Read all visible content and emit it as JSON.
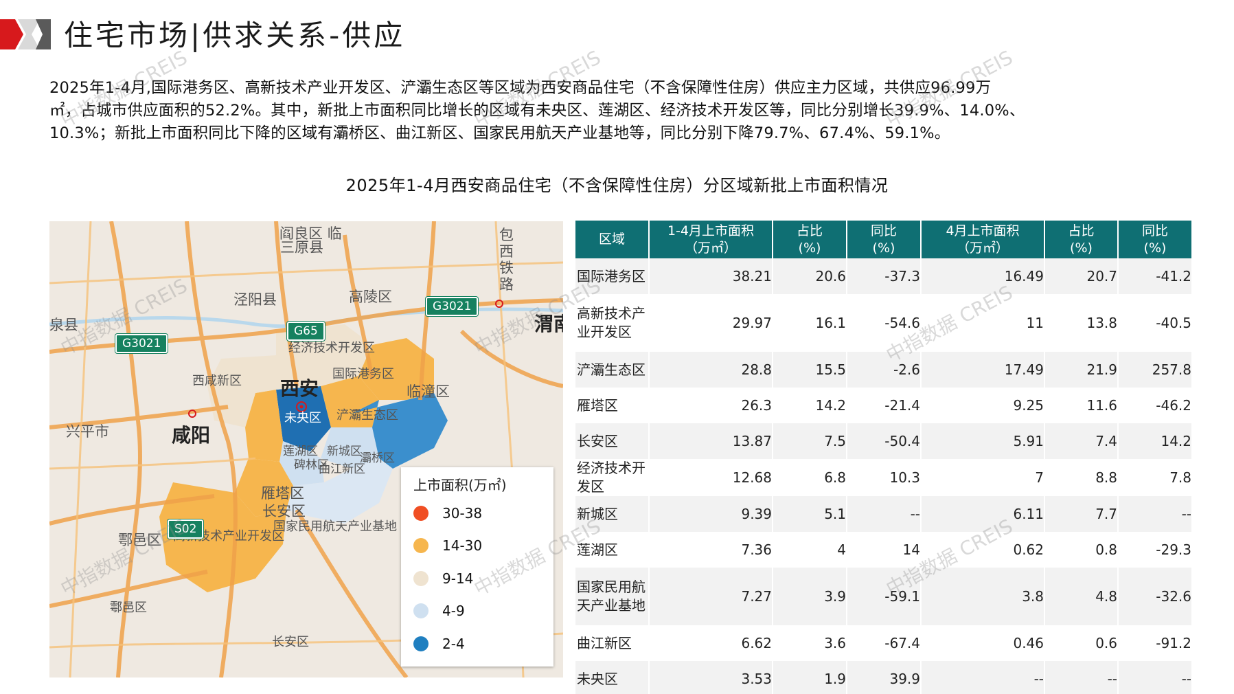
{
  "header": {
    "title": "住宅市场|供求关系-供应"
  },
  "intro": {
    "lines": [
      "2025年1-4月,国际港务区、高新技术产业开发区、浐灞生态区等区域为西安商品住宅（不含保障性住房）供应主力区域，共供应96.99万",
      "㎡，占城市供应面积的52.2%。其中，新批上市面积同比增长的区域有未央区、莲湖区、经济技术开发区等，同比分别增长39.9%、14.0%、",
      "10.3%；新批上市面积同比下降的区域有灞桥区、曲江新区、国家民用航天产业基地等，同比分别下降79.7%、67.4%、59.1%。"
    ]
  },
  "section_title": "2025年1-4月西安商品住宅（不含保障性住房）分区域新批上市面积情况",
  "map": {
    "labels": {
      "sanyuan": "三原县",
      "jingyang": "泾阳县",
      "gaoling": "高陵区",
      "weinan": "渭南",
      "quanxian": "泉县",
      "jingji": "经济技术开发区",
      "guoji": "国际港务区",
      "xixian": "西咸新区",
      "xian": "西安",
      "lintong": "临潼区",
      "xingping": "兴平市",
      "xianyang": "咸阳",
      "weiyang": "未央区",
      "chanba": "浐灞生态区",
      "lianhu": "莲湖区",
      "xincheng": "新城区",
      "beilin": "碑林区",
      "qujiang": "曲江新区",
      "baqiao": "灞桥区",
      "yanta": "雁塔区",
      "changan": "长安区",
      "hangtian": "国家民用航天产业基地",
      "gaoxin": "高新技术产业开发区",
      "huyi": "鄠邑区",
      "huyi2": "鄠邑区",
      "changan2": "长安区",
      "baoxi": "包西铁路",
      "top": "阎良区 临"
    },
    "shields": {
      "g3021_left": "G3021",
      "g3021_right": "G3021",
      "g65": "G65",
      "s02": "S02"
    }
  },
  "legend": {
    "title": "上市面积(万㎡)",
    "items": [
      {
        "label": "30-38",
        "color": "#f04e23"
      },
      {
        "label": "14-30",
        "color": "#f6b64e"
      },
      {
        "label": "9-14",
        "color": "#efe3d0"
      },
      {
        "label": "4-9",
        "color": "#cfe0f0"
      },
      {
        "label": "2-4",
        "color": "#1f7fc0"
      }
    ]
  },
  "table": {
    "headers": [
      [
        "区域"
      ],
      [
        "1-4月上市面积",
        "（万㎡）"
      ],
      [
        "占比",
        "(%)"
      ],
      [
        "同比",
        "(%)"
      ],
      [
        "4月上市面积",
        "（万㎡）"
      ],
      [
        "占比",
        "(%)"
      ],
      [
        "同比",
        "(%)"
      ]
    ],
    "rows": [
      {
        "region": "国际港务区",
        "area_1_4": "38.21",
        "share_1_4": "20.6",
        "yoy_1_4": "-37.3",
        "area_4": "16.49",
        "share_4": "20.7",
        "yoy_4": "-41.2"
      },
      {
        "region": "高新技术产业开发区",
        "area_1_4": "29.97",
        "share_1_4": "16.1",
        "yoy_1_4": "-54.6",
        "area_4": "11",
        "share_4": "13.8",
        "yoy_4": "-40.5"
      },
      {
        "region": "浐灞生态区",
        "area_1_4": "28.8",
        "share_1_4": "15.5",
        "yoy_1_4": "-2.6",
        "area_4": "17.49",
        "share_4": "21.9",
        "yoy_4": "257.8"
      },
      {
        "region": "雁塔区",
        "area_1_4": "26.3",
        "share_1_4": "14.2",
        "yoy_1_4": "-21.4",
        "area_4": "9.25",
        "share_4": "11.6",
        "yoy_4": "-46.2"
      },
      {
        "region": "长安区",
        "area_1_4": "13.87",
        "share_1_4": "7.5",
        "yoy_1_4": "-50.4",
        "area_4": "5.91",
        "share_4": "7.4",
        "yoy_4": "14.2"
      },
      {
        "region": "经济技术开发区",
        "area_1_4": "12.68",
        "share_1_4": "6.8",
        "yoy_1_4": "10.3",
        "area_4": "7",
        "share_4": "8.8",
        "yoy_4": "7.8"
      },
      {
        "region": "新城区",
        "area_1_4": "9.39",
        "share_1_4": "5.1",
        "yoy_1_4": "--",
        "area_4": "6.11",
        "share_4": "7.7",
        "yoy_4": "--"
      },
      {
        "region": "莲湖区",
        "area_1_4": "7.36",
        "share_1_4": "4",
        "yoy_1_4": "14",
        "area_4": "0.62",
        "share_4": "0.8",
        "yoy_4": "-29.3"
      },
      {
        "region": "国家民用航天产业基地",
        "area_1_4": "7.27",
        "share_1_4": "3.9",
        "yoy_1_4": "-59.1",
        "area_4": "3.8",
        "share_4": "4.8",
        "yoy_4": "-32.6"
      },
      {
        "region": "曲江新区",
        "area_1_4": "6.62",
        "share_1_4": "3.6",
        "yoy_1_4": "-67.4",
        "area_4": "0.46",
        "share_4": "0.6",
        "yoy_4": "-91.2"
      },
      {
        "region": "未央区",
        "area_1_4": "3.53",
        "share_1_4": "1.9",
        "yoy_1_4": "39.9",
        "area_4": "--",
        "share_4": "--",
        "yoy_4": "--"
      }
    ]
  },
  "watermark": "中指数据 CREIS"
}
